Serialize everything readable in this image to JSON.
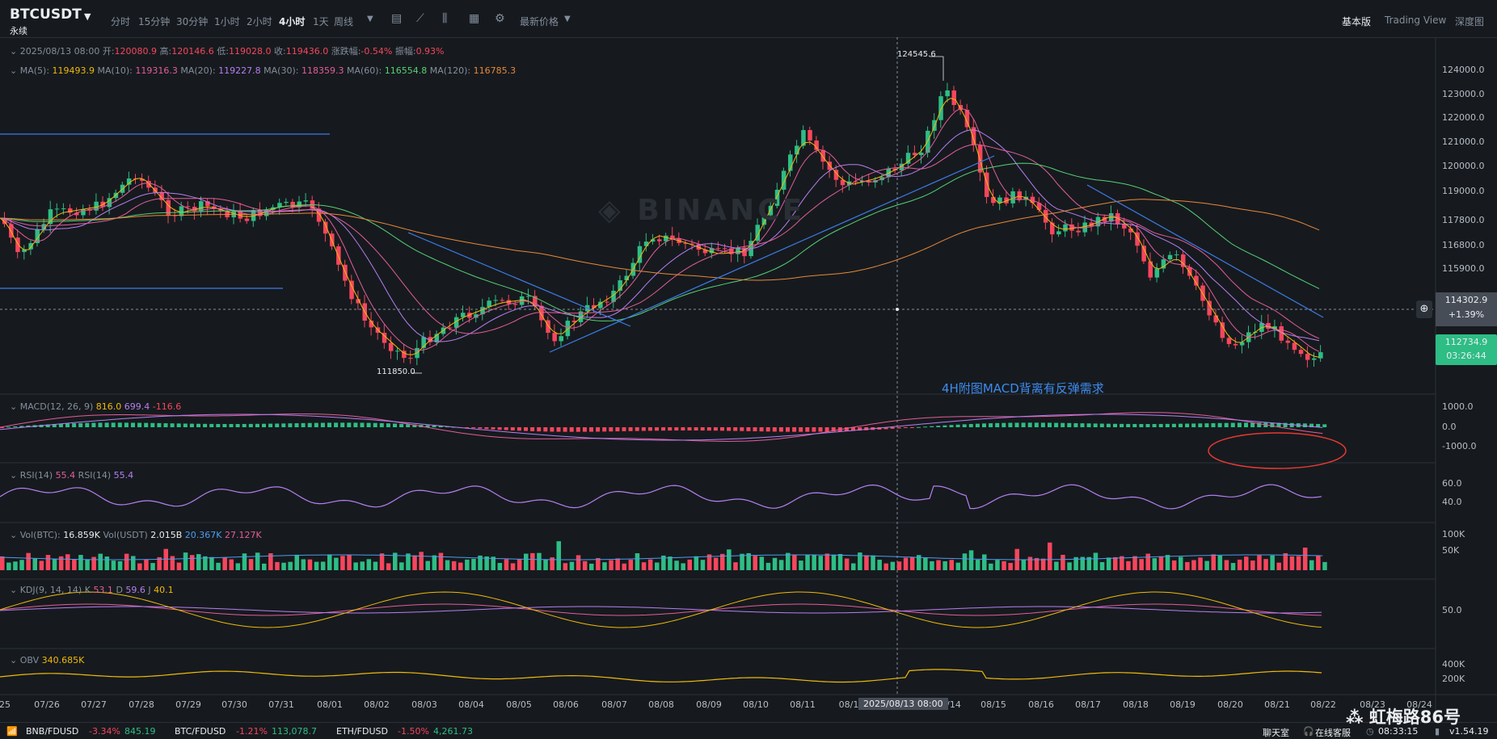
{
  "header": {
    "symbol": "BTCUSDT",
    "contract_type": "永续",
    "intervals": [
      "分时",
      "15分钟",
      "30分钟",
      "1小时",
      "2小时",
      "4小时",
      "1天",
      "周线"
    ],
    "active_interval": "4小时",
    "tool_icons": [
      "interval-dropdown-icon",
      "chart-type-icon",
      "indicator-icon",
      "compare-icon",
      "settings-icon"
    ],
    "price_type": "最新价格",
    "views": [
      "基本版",
      "Trading View",
      "深度图"
    ],
    "active_view": "基本版"
  },
  "ohlc": {
    "date": "2025/08/13 08:00",
    "open_label": "开:",
    "open": "120080.9",
    "high_label": "高:",
    "high": "120146.6",
    "low_label": "低:",
    "low": "119028.0",
    "close_label": "收:",
    "close": "119436.0",
    "change_label": "涨跌幅:",
    "change": "-0.54%",
    "amp_label": "振幅:",
    "amp": "0.93%"
  },
  "ma": {
    "items": [
      {
        "label": "MA(5):",
        "value": "119493.9",
        "color": "#f0b90b"
      },
      {
        "label": "MA(10):",
        "value": "119316.3",
        "color": "#e45d9a"
      },
      {
        "label": "MA(20):",
        "value": "119227.8",
        "color": "#b77ff2"
      },
      {
        "label": "MA(30):",
        "value": "118359.3",
        "color": "#e45d9a"
      },
      {
        "label": "MA(60):",
        "value": "116554.8",
        "color": "#56d176"
      },
      {
        "label": "MA(120):",
        "value": "116785.3",
        "color": "#e8883a"
      }
    ]
  },
  "price_axis": [
    "124000.0",
    "123000.0",
    "122000.0",
    "121000.0",
    "120000.0",
    "119000.0",
    "117800.0",
    "116800.0",
    "115900.0",
    "114302.9"
  ],
  "crosshair": {
    "price": "114302.9",
    "change": "+1.39%",
    "date": "2025/08/13 08:00"
  },
  "last_price": {
    "price": "112734.9",
    "countdown": "03:26:44"
  },
  "markers": {
    "high": "124545.6",
    "low": "111850.0"
  },
  "annotation": "4H附图MACD背离有反弹需求",
  "macd": {
    "title": "MACD(12, 26, 9)",
    "v1": "816.0",
    "v2": "699.4",
    "v3": "-116.6",
    "axis": [
      "1000.0",
      "0.0",
      "-1000.0"
    ]
  },
  "rsi": {
    "title1": "RSI(14)",
    "v1": "55.4",
    "title2": "RSI(14)",
    "v2": "55.4",
    "axis": [
      "60.0",
      "40.0"
    ]
  },
  "vol": {
    "title1": "Vol(BTC):",
    "v1": "16.859K",
    "title2": "Vol(USDT)",
    "v2": "2.015B",
    "v3": "20.367K",
    "v4": "27.127K",
    "axis": [
      "100K",
      "50K"
    ]
  },
  "kdj": {
    "title": "KDJ(9, 14, 14)",
    "k_label": "K",
    "k": "53.1",
    "d_label": "D",
    "d": "59.6",
    "j_label": "J",
    "j": "40.1",
    "axis": [
      "50.0"
    ]
  },
  "obv": {
    "title": "OBV",
    "value": "340.685K",
    "axis": [
      "400K",
      "200K"
    ]
  },
  "dates": [
    "25",
    "07/26",
    "07/27",
    "07/28",
    "07/29",
    "07/30",
    "07/31",
    "08/01",
    "08/02",
    "08/03",
    "08/04",
    "08/05",
    "08/06",
    "08/07",
    "08/08",
    "08/09",
    "08/10",
    "08/11",
    "08/1",
    "08/14",
    "08/15",
    "08/16",
    "08/17",
    "08/18",
    "08/19",
    "08/20",
    "08/21",
    "08/22",
    "08/23",
    "08/24"
  ],
  "bottom": {
    "tickers": [
      {
        "name": "BNB/FDUSD",
        "change": "-3.34%",
        "price": "845.19"
      },
      {
        "name": "BTC/FDUSD",
        "change": "-1.21%",
        "price": "113,078.7"
      },
      {
        "name": "ETH/FDUSD",
        "change": "-1.50%",
        "price": "4,261.73"
      }
    ],
    "chat": "聊天室",
    "service": "在线客服",
    "time": "08:33:15",
    "version": "v1.54.19"
  },
  "watermark": "虹梅路86号",
  "colors": {
    "up": "#2ebd85",
    "down": "#f6465d",
    "bg": "#161a1e"
  }
}
